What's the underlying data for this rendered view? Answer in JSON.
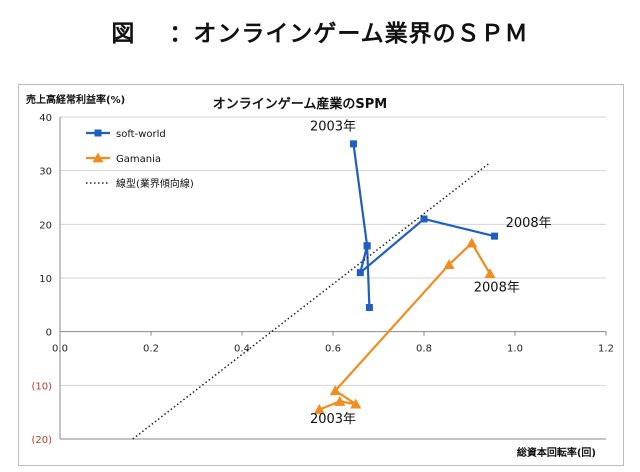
{
  "figure": {
    "title_prefix": "図",
    "title_text": "：オンラインゲーム業界のＳＰＭ"
  },
  "chart_data": {
    "type": "line",
    "title": "オンラインゲーム産業のSPM",
    "ylabel": "売上高経常利益率(%)",
    "xlabel": "総資本回転率(回)",
    "xlim": [
      0,
      1.2
    ],
    "ylim": [
      -20,
      40
    ],
    "xticks": [
      "0.0",
      "0.2",
      "0.4",
      "0.6",
      "0.8",
      "1.0",
      "1.2"
    ],
    "yticks": [
      "40",
      "30",
      "20",
      "10",
      "0",
      "(10)",
      "(20)"
    ],
    "grid": "horizontal",
    "legend_position": "top-left",
    "series": [
      {
        "name": "soft-world",
        "color": "#1f5fbf",
        "marker": "square",
        "x": [
          0.645,
          0.675,
          0.68,
          0.675,
          0.66,
          0.8,
          0.955
        ],
        "y": [
          35,
          16,
          4.5,
          16,
          11,
          21,
          17.8
        ]
      },
      {
        "name": "Gamania",
        "color": "#f28c1f",
        "marker": "triangle",
        "x": [
          0.57,
          0.615,
          0.65,
          0.605,
          0.855,
          0.905,
          0.945
        ],
        "y": [
          -14.5,
          -13,
          -13.5,
          -11,
          12.5,
          16.5,
          10.8
        ]
      },
      {
        "name": "線型(業界傾向線)",
        "color": "#222222",
        "style": "dotted",
        "x": [
          0.16,
          0.945
        ],
        "y": [
          -20,
          31.5
        ]
      }
    ],
    "annotations": [
      {
        "text": "2003年",
        "x": 0.6,
        "y": 37.5
      },
      {
        "text": "2008年",
        "x": 1.03,
        "y": 19.5
      },
      {
        "text": "2008年",
        "x": 0.96,
        "y": 7.5
      },
      {
        "text": "2003年",
        "x": 0.6,
        "y": -17
      }
    ]
  }
}
